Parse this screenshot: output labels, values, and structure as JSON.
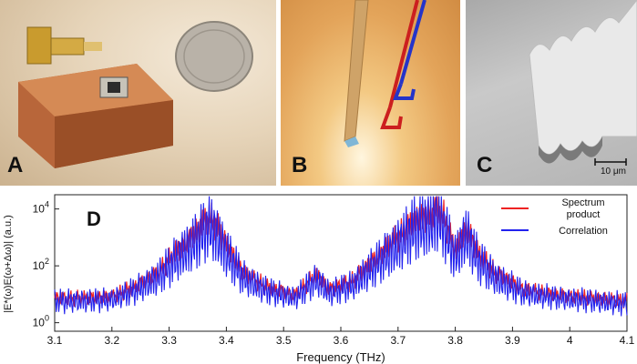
{
  "figure": {
    "panel_a": {
      "label": "A"
    },
    "panel_b": {
      "label": "B"
    },
    "panel_c": {
      "label": "C",
      "scale_bar": "10 μm"
    },
    "panel_d": {
      "label": "D"
    }
  },
  "colors": {
    "spectrum_product": "#ee2222",
    "correlation": "#2222ee"
  },
  "chart_data": {
    "type": "line",
    "title": "",
    "xlabel": "Frequency (THz)",
    "ylabel": "|E*(ω)E(ω+Δω)| (a.u.)",
    "xlim": [
      3.1,
      4.1
    ],
    "ylim_log10": [
      -0.3,
      4.5
    ],
    "yscale": "log",
    "xticks": [
      "3.1",
      "3.2",
      "3.3",
      "3.4",
      "3.5",
      "3.6",
      "3.7",
      "3.8",
      "3.9",
      "4",
      "4.1"
    ],
    "xtick_values": [
      3.1,
      3.2,
      3.3,
      3.4,
      3.5,
      3.6,
      3.7,
      3.8,
      3.9,
      4.0,
      4.1
    ],
    "yticks": [
      {
        "base": "10",
        "exp": "0",
        "log10": 0
      },
      {
        "base": "10",
        "exp": "2",
        "log10": 2
      },
      {
        "base": "10",
        "exp": "4",
        "log10": 4
      }
    ],
    "legend": {
      "placement": "top-right",
      "entries": [
        {
          "name": "Spectrum product",
          "lines": [
            "Spectrum",
            "product"
          ],
          "color": "#ee2222"
        },
        {
          "name": "Correlation",
          "lines": [
            "Correlation"
          ],
          "color": "#2222ee"
        }
      ]
    },
    "series": [
      {
        "name": "Spectrum product",
        "color": "#ee2222",
        "x_thz": [
          3.1,
          3.15,
          3.2,
          3.24,
          3.28,
          3.31,
          3.34,
          3.36,
          3.37,
          3.38,
          3.4,
          3.43,
          3.47,
          3.52,
          3.55,
          3.56,
          3.58,
          3.62,
          3.66,
          3.7,
          3.73,
          3.76,
          3.77,
          3.78,
          3.79,
          3.8,
          3.81,
          3.82,
          3.84,
          3.87,
          3.92,
          3.98,
          4.04,
          4.1
        ],
        "log10_y": [
          0.9,
          0.9,
          0.95,
          1.3,
          1.8,
          2.5,
          3.1,
          3.6,
          3.8,
          3.6,
          2.8,
          1.8,
          1.3,
          1.0,
          1.6,
          1.7,
          1.2,
          1.5,
          2.3,
          3.1,
          3.7,
          3.9,
          4.1,
          3.8,
          3.2,
          2.6,
          3.0,
          3.4,
          2.5,
          1.8,
          1.2,
          1.0,
          0.9,
          0.8
        ]
      },
      {
        "name": "Correlation",
        "color": "#2222ee",
        "x_thz": [
          3.1,
          3.15,
          3.2,
          3.24,
          3.28,
          3.31,
          3.34,
          3.36,
          3.37,
          3.38,
          3.4,
          3.43,
          3.47,
          3.52,
          3.55,
          3.56,
          3.58,
          3.62,
          3.66,
          3.7,
          3.73,
          3.76,
          3.77,
          3.78,
          3.79,
          3.8,
          3.81,
          3.82,
          3.84,
          3.87,
          3.92,
          3.98,
          4.04,
          4.1
        ],
        "log10_y": [
          0.9,
          0.9,
          0.95,
          1.3,
          1.8,
          2.5,
          3.1,
          3.6,
          3.9,
          3.6,
          2.8,
          1.8,
          1.3,
          1.0,
          1.6,
          1.7,
          1.2,
          1.5,
          2.3,
          3.1,
          3.8,
          4.0,
          4.3,
          3.8,
          3.2,
          2.6,
          3.1,
          3.5,
          2.5,
          1.8,
          1.2,
          1.0,
          0.9,
          0.8
        ]
      }
    ]
  }
}
